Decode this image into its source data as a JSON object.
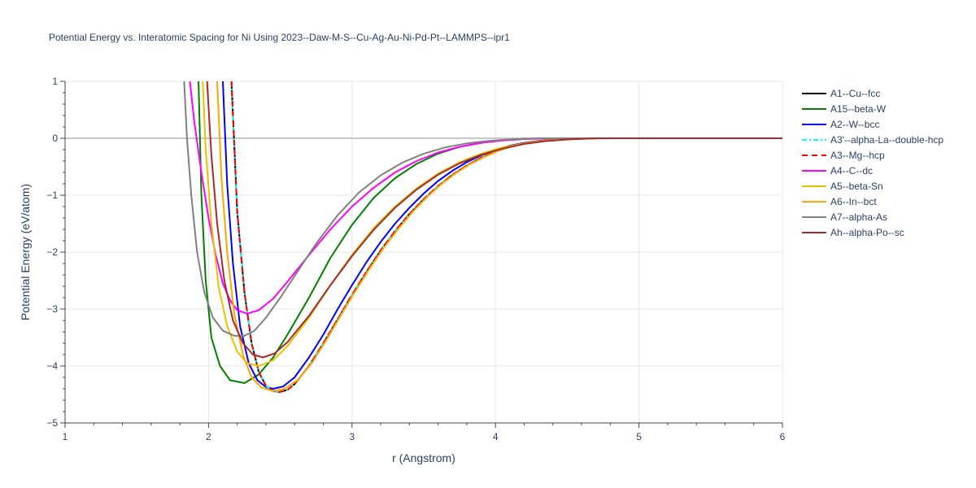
{
  "chart_data": {
    "type": "line",
    "title": "Potential Energy vs. Interatomic Spacing for Ni Using 2023--Daw-M-S--Cu-Ag-Au-Ni-Pd-Pt--LAMMPS--ipr1",
    "xlabel": "r (Angstrom)",
    "ylabel": "Potential Energy (eV/atom)",
    "xlim": [
      1,
      6
    ],
    "ylim": [
      -5,
      1
    ],
    "xticks": [
      "1",
      "2",
      "3",
      "4",
      "5",
      "6"
    ],
    "yticks": [
      "1",
      "0",
      "−1",
      "−2",
      "−3",
      "−4",
      "−5"
    ],
    "grid": true,
    "legend_position": "right",
    "series": [
      {
        "name": "A1--Cu--fcc",
        "color": "#000000",
        "dash": "solid",
        "points": [
          [
            2.16,
            1.0
          ],
          [
            2.2,
            -1.3
          ],
          [
            2.25,
            -2.7
          ],
          [
            2.3,
            -3.6
          ],
          [
            2.35,
            -4.1
          ],
          [
            2.4,
            -4.35
          ],
          [
            2.45,
            -4.44
          ],
          [
            2.49,
            -4.46
          ],
          [
            2.55,
            -4.42
          ],
          [
            2.6,
            -4.32
          ],
          [
            2.7,
            -4.0
          ],
          [
            2.8,
            -3.6
          ],
          [
            2.9,
            -3.18
          ],
          [
            3.0,
            -2.75
          ],
          [
            3.1,
            -2.35
          ],
          [
            3.2,
            -1.97
          ],
          [
            3.3,
            -1.63
          ],
          [
            3.4,
            -1.33
          ],
          [
            3.5,
            -1.07
          ],
          [
            3.6,
            -0.84
          ],
          [
            3.7,
            -0.64
          ],
          [
            3.8,
            -0.48
          ],
          [
            3.9,
            -0.34
          ],
          [
            4.0,
            -0.23
          ],
          [
            4.1,
            -0.15
          ],
          [
            4.2,
            -0.09
          ],
          [
            4.3,
            -0.05
          ],
          [
            4.4,
            -0.03
          ],
          [
            4.6,
            -0.005
          ],
          [
            4.8,
            0
          ],
          [
            5.0,
            0
          ],
          [
            6.0,
            0
          ]
        ]
      },
      {
        "name": "A15--beta-W",
        "color": "#008000",
        "dash": "solid",
        "points": [
          [
            1.93,
            1.0
          ],
          [
            1.95,
            -1.0
          ],
          [
            1.98,
            -2.5
          ],
          [
            2.02,
            -3.5
          ],
          [
            2.08,
            -4.0
          ],
          [
            2.15,
            -4.25
          ],
          [
            2.25,
            -4.3
          ],
          [
            2.35,
            -4.15
          ],
          [
            2.45,
            -3.85
          ],
          [
            2.55,
            -3.45
          ],
          [
            2.7,
            -2.8
          ],
          [
            2.85,
            -2.1
          ],
          [
            3.0,
            -1.52
          ],
          [
            3.15,
            -1.05
          ],
          [
            3.3,
            -0.7
          ],
          [
            3.45,
            -0.45
          ],
          [
            3.6,
            -0.27
          ],
          [
            3.75,
            -0.15
          ],
          [
            3.9,
            -0.08
          ],
          [
            4.05,
            -0.035
          ],
          [
            4.2,
            -0.01
          ],
          [
            4.4,
            0
          ],
          [
            6.0,
            0
          ]
        ]
      },
      {
        "name": "A2--W--bcc",
        "color": "#0000ff",
        "dash": "solid",
        "points": [
          [
            2.1,
            1.0
          ],
          [
            2.13,
            -0.8
          ],
          [
            2.17,
            -2.2
          ],
          [
            2.22,
            -3.3
          ],
          [
            2.28,
            -3.95
          ],
          [
            2.34,
            -4.25
          ],
          [
            2.4,
            -4.37
          ],
          [
            2.45,
            -4.4
          ],
          [
            2.52,
            -4.36
          ],
          [
            2.6,
            -4.2
          ],
          [
            2.7,
            -3.85
          ],
          [
            2.8,
            -3.45
          ],
          [
            2.9,
            -3.0
          ],
          [
            3.0,
            -2.58
          ],
          [
            3.1,
            -2.18
          ],
          [
            3.2,
            -1.82
          ],
          [
            3.3,
            -1.5
          ],
          [
            3.4,
            -1.22
          ],
          [
            3.5,
            -0.97
          ],
          [
            3.6,
            -0.75
          ],
          [
            3.7,
            -0.57
          ],
          [
            3.8,
            -0.42
          ],
          [
            3.9,
            -0.3
          ],
          [
            4.0,
            -0.2
          ],
          [
            4.1,
            -0.13
          ],
          [
            4.2,
            -0.08
          ],
          [
            4.3,
            -0.045
          ],
          [
            4.45,
            -0.015
          ],
          [
            4.6,
            0
          ],
          [
            6.0,
            0
          ]
        ]
      },
      {
        "name": "A3'--alpha-La--double-hcp",
        "color": "#00ffff",
        "dash": "6px,3px,2px,3px",
        "points": [
          [
            2.16,
            1.0
          ],
          [
            2.2,
            -1.3
          ],
          [
            2.25,
            -2.7
          ],
          [
            2.3,
            -3.6
          ],
          [
            2.35,
            -4.1
          ],
          [
            2.4,
            -4.35
          ],
          [
            2.45,
            -4.44
          ],
          [
            2.49,
            -4.46
          ],
          [
            2.55,
            -4.42
          ],
          [
            2.6,
            -4.32
          ],
          [
            2.7,
            -4.0
          ],
          [
            2.8,
            -3.6
          ],
          [
            2.9,
            -3.18
          ],
          [
            3.0,
            -2.75
          ],
          [
            3.1,
            -2.35
          ],
          [
            3.2,
            -1.97
          ],
          [
            3.3,
            -1.63
          ],
          [
            3.4,
            -1.33
          ],
          [
            3.5,
            -1.07
          ],
          [
            3.6,
            -0.84
          ],
          [
            3.7,
            -0.64
          ],
          [
            3.8,
            -0.48
          ],
          [
            3.9,
            -0.34
          ],
          [
            4.0,
            -0.23
          ],
          [
            4.1,
            -0.15
          ],
          [
            4.2,
            -0.09
          ],
          [
            4.3,
            -0.05
          ],
          [
            4.4,
            -0.03
          ],
          [
            4.6,
            -0.005
          ],
          [
            4.8,
            0
          ],
          [
            5.0,
            0
          ],
          [
            6.0,
            0
          ]
        ]
      },
      {
        "name": "A3--Mg--hcp",
        "color": "#ff0000",
        "dash": "7px,5px",
        "points": [
          [
            2.16,
            1.0
          ],
          [
            2.2,
            -1.3
          ],
          [
            2.25,
            -2.7
          ],
          [
            2.3,
            -3.6
          ],
          [
            2.35,
            -4.1
          ],
          [
            2.4,
            -4.35
          ],
          [
            2.45,
            -4.44
          ],
          [
            2.49,
            -4.46
          ],
          [
            2.55,
            -4.42
          ],
          [
            2.6,
            -4.32
          ],
          [
            2.7,
            -4.0
          ],
          [
            2.8,
            -3.6
          ],
          [
            2.9,
            -3.18
          ],
          [
            3.0,
            -2.75
          ],
          [
            3.1,
            -2.35
          ],
          [
            3.2,
            -1.97
          ],
          [
            3.3,
            -1.63
          ],
          [
            3.4,
            -1.33
          ],
          [
            3.5,
            -1.07
          ],
          [
            3.6,
            -0.84
          ],
          [
            3.7,
            -0.64
          ],
          [
            3.8,
            -0.48
          ],
          [
            3.9,
            -0.34
          ],
          [
            4.0,
            -0.23
          ],
          [
            4.1,
            -0.15
          ],
          [
            4.2,
            -0.09
          ],
          [
            4.3,
            -0.05
          ],
          [
            4.4,
            -0.03
          ],
          [
            4.6,
            -0.005
          ],
          [
            4.8,
            0
          ],
          [
            5.0,
            0
          ],
          [
            6.0,
            0
          ]
        ]
      },
      {
        "name": "A4--C--dc",
        "color": "#ff00ff",
        "dash": "solid",
        "points": [
          [
            1.87,
            1.0
          ],
          [
            1.9,
            0.3
          ],
          [
            1.95,
            -0.6
          ],
          [
            2.0,
            -1.4
          ],
          [
            2.05,
            -2.05
          ],
          [
            2.1,
            -2.55
          ],
          [
            2.15,
            -2.85
          ],
          [
            2.2,
            -3.02
          ],
          [
            2.27,
            -3.08
          ],
          [
            2.35,
            -3.02
          ],
          [
            2.45,
            -2.82
          ],
          [
            2.55,
            -2.52
          ],
          [
            2.7,
            -2.05
          ],
          [
            2.85,
            -1.6
          ],
          [
            3.0,
            -1.2
          ],
          [
            3.15,
            -0.87
          ],
          [
            3.3,
            -0.6
          ],
          [
            3.45,
            -0.4
          ],
          [
            3.6,
            -0.25
          ],
          [
            3.75,
            -0.15
          ],
          [
            3.9,
            -0.08
          ],
          [
            4.05,
            -0.04
          ],
          [
            4.2,
            -0.015
          ],
          [
            4.4,
            0
          ],
          [
            6.0,
            0
          ]
        ]
      },
      {
        "name": "A5--beta-Sn",
        "color": "#e6c200",
        "dash": "solid",
        "points": [
          [
            1.96,
            1.0
          ],
          [
            1.98,
            -0.2
          ],
          [
            2.02,
            -1.5
          ],
          [
            2.07,
            -2.6
          ],
          [
            2.13,
            -3.3
          ],
          [
            2.2,
            -3.75
          ],
          [
            2.27,
            -3.95
          ],
          [
            2.35,
            -4.0
          ],
          [
            2.45,
            -3.9
          ],
          [
            2.55,
            -3.65
          ],
          [
            2.7,
            -3.15
          ],
          [
            2.85,
            -2.58
          ],
          [
            3.0,
            -2.05
          ],
          [
            3.15,
            -1.58
          ],
          [
            3.3,
            -1.2
          ],
          [
            3.45,
            -0.88
          ],
          [
            3.6,
            -0.62
          ],
          [
            3.75,
            -0.42
          ],
          [
            3.9,
            -0.27
          ],
          [
            4.05,
            -0.16
          ],
          [
            4.2,
            -0.09
          ],
          [
            4.35,
            -0.045
          ],
          [
            4.5,
            -0.02
          ],
          [
            4.7,
            0
          ],
          [
            6.0,
            0
          ]
        ]
      },
      {
        "name": "A6--In--bct",
        "color": "#ffa500",
        "dash": "solid",
        "points": [
          [
            2.06,
            1.0
          ],
          [
            2.09,
            -0.7
          ],
          [
            2.13,
            -2.0
          ],
          [
            2.18,
            -3.1
          ],
          [
            2.24,
            -3.8
          ],
          [
            2.3,
            -4.2
          ],
          [
            2.37,
            -4.38
          ],
          [
            2.45,
            -4.44
          ],
          [
            2.53,
            -4.4
          ],
          [
            2.62,
            -4.25
          ],
          [
            2.72,
            -3.95
          ],
          [
            2.82,
            -3.55
          ],
          [
            2.92,
            -3.12
          ],
          [
            3.02,
            -2.7
          ],
          [
            3.12,
            -2.3
          ],
          [
            3.22,
            -1.93
          ],
          [
            3.32,
            -1.6
          ],
          [
            3.42,
            -1.3
          ],
          [
            3.52,
            -1.04
          ],
          [
            3.62,
            -0.81
          ],
          [
            3.72,
            -0.62
          ],
          [
            3.82,
            -0.46
          ],
          [
            3.92,
            -0.33
          ],
          [
            4.02,
            -0.22
          ],
          [
            4.12,
            -0.14
          ],
          [
            4.22,
            -0.08
          ],
          [
            4.35,
            -0.04
          ],
          [
            4.5,
            -0.015
          ],
          [
            4.7,
            0
          ],
          [
            6.0,
            0
          ]
        ]
      },
      {
        "name": "A7--alpha-As",
        "color": "#808080",
        "dash": "solid",
        "points": [
          [
            1.83,
            1.0
          ],
          [
            1.85,
            0.0
          ],
          [
            1.88,
            -1.0
          ],
          [
            1.92,
            -2.0
          ],
          [
            1.97,
            -2.7
          ],
          [
            2.03,
            -3.15
          ],
          [
            2.1,
            -3.38
          ],
          [
            2.18,
            -3.47
          ],
          [
            2.25,
            -3.47
          ],
          [
            2.32,
            -3.38
          ],
          [
            2.4,
            -3.15
          ],
          [
            2.5,
            -2.8
          ],
          [
            2.6,
            -2.42
          ],
          [
            2.75,
            -1.85
          ],
          [
            2.9,
            -1.35
          ],
          [
            3.05,
            -0.95
          ],
          [
            3.2,
            -0.65
          ],
          [
            3.35,
            -0.43
          ],
          [
            3.5,
            -0.27
          ],
          [
            3.65,
            -0.16
          ],
          [
            3.8,
            -0.09
          ],
          [
            3.95,
            -0.045
          ],
          [
            4.1,
            -0.02
          ],
          [
            4.3,
            0
          ],
          [
            6.0,
            0
          ]
        ]
      },
      {
        "name": "Ah--alpha-Po--sc",
        "color": "#a52a2a",
        "dash": "solid",
        "points": [
          [
            1.99,
            1.0
          ],
          [
            2.02,
            -0.3
          ],
          [
            2.06,
            -1.5
          ],
          [
            2.11,
            -2.5
          ],
          [
            2.17,
            -3.2
          ],
          [
            2.24,
            -3.6
          ],
          [
            2.31,
            -3.8
          ],
          [
            2.38,
            -3.85
          ],
          [
            2.46,
            -3.78
          ],
          [
            2.55,
            -3.58
          ],
          [
            2.7,
            -3.12
          ],
          [
            2.85,
            -2.58
          ],
          [
            3.0,
            -2.07
          ],
          [
            3.15,
            -1.61
          ],
          [
            3.3,
            -1.22
          ],
          [
            3.45,
            -0.9
          ],
          [
            3.6,
            -0.64
          ],
          [
            3.75,
            -0.44
          ],
          [
            3.9,
            -0.29
          ],
          [
            4.05,
            -0.18
          ],
          [
            4.2,
            -0.1
          ],
          [
            4.35,
            -0.05
          ],
          [
            4.5,
            -0.022
          ],
          [
            4.7,
            0
          ],
          [
            6.0,
            0
          ]
        ]
      }
    ]
  }
}
